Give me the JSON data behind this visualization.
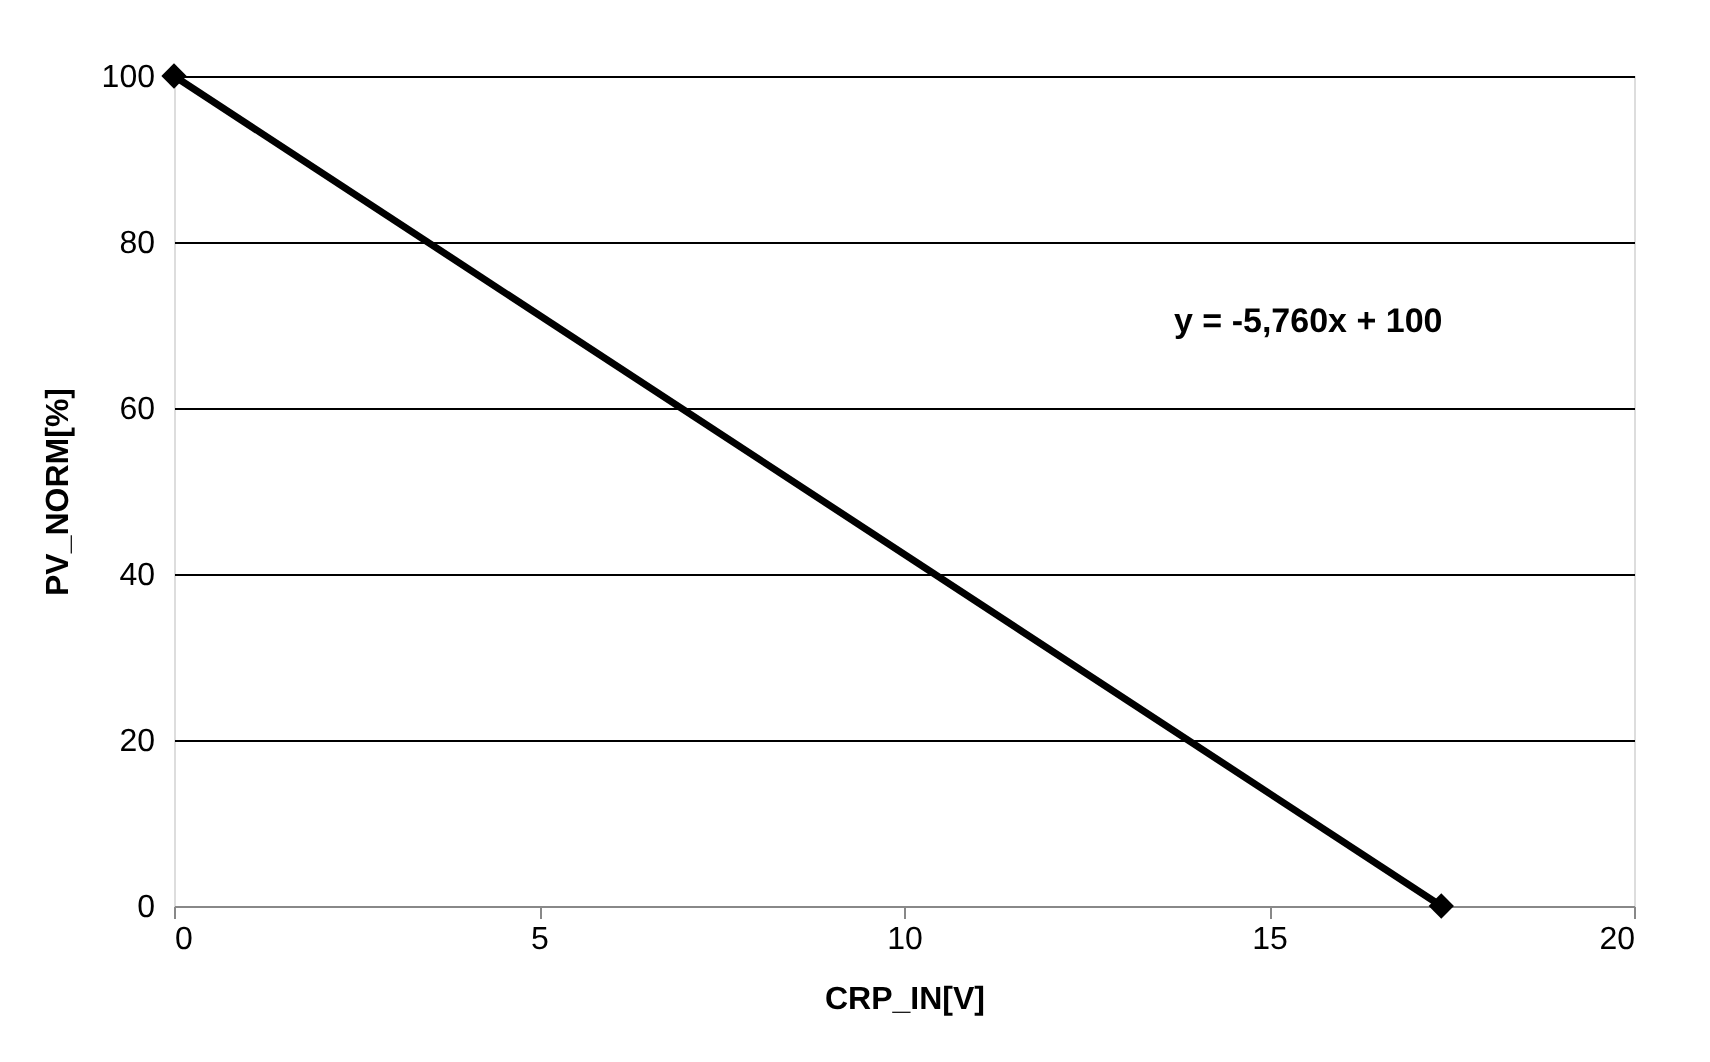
{
  "chart_data": {
    "type": "line",
    "xlabel": "CRP_IN[V]",
    "ylabel": "PV_NORM[%]",
    "x": [
      0,
      17.36
    ],
    "series": [
      {
        "color": "#000000",
        "values": [
          100,
          0
        ]
      }
    ],
    "xlim": [
      0,
      20
    ],
    "xticks": [
      0,
      5,
      10,
      15,
      20
    ],
    "ylim": [
      0,
      100
    ],
    "yticks": [
      0,
      20,
      40,
      60,
      80,
      100
    ],
    "grid": "y",
    "marker": "diamond",
    "line_style": "solid",
    "legend": false,
    "annotations": [
      "y = -5,760x + 100"
    ]
  }
}
